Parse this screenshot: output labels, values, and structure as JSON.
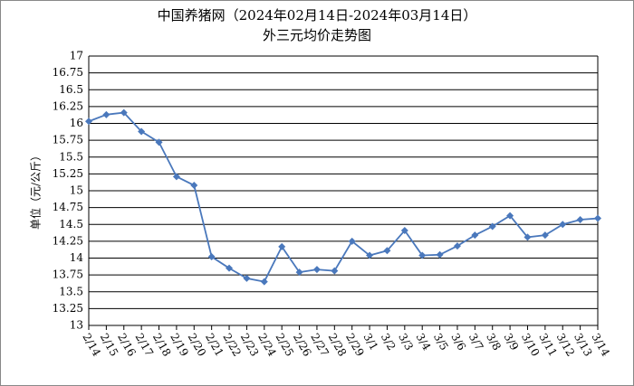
{
  "chart_data": {
    "type": "line",
    "title": "中国养猪网（2024年02月14日-2024年03月14日）",
    "subtitle": "外三元均价走势图",
    "y_label": "单位（元/公斤）",
    "categories": [
      "2/14",
      "2/15",
      "2/16",
      "2/17",
      "2/18",
      "2/19",
      "2/20",
      "2/21",
      "2/22",
      "2/23",
      "2/24",
      "2/25",
      "2/26",
      "2/27",
      "2/28",
      "2/29",
      "3/1",
      "3/2",
      "3/3",
      "3/4",
      "3/5",
      "3/6",
      "3/7",
      "3/8",
      "3/9",
      "3/10",
      "3/11",
      "3/12",
      "3/13",
      "3/14"
    ],
    "values": [
      16.03,
      16.13,
      16.16,
      15.88,
      15.72,
      15.21,
      15.08,
      14.02,
      13.85,
      13.7,
      13.65,
      14.17,
      13.79,
      13.83,
      13.81,
      14.25,
      14.04,
      14.11,
      14.41,
      14.04,
      14.05,
      14.18,
      14.34,
      14.47,
      14.63,
      14.31,
      14.34,
      14.5,
      14.57,
      14.59
    ],
    "color": "#4a78bc",
    "ylim": [
      13,
      17
    ],
    "yticks": [
      13,
      13.25,
      13.5,
      13.75,
      14,
      14.25,
      14.5,
      14.75,
      15,
      15.25,
      15.5,
      15.75,
      16,
      16.25,
      16.5,
      16.75,
      17
    ],
    "grid": true
  }
}
